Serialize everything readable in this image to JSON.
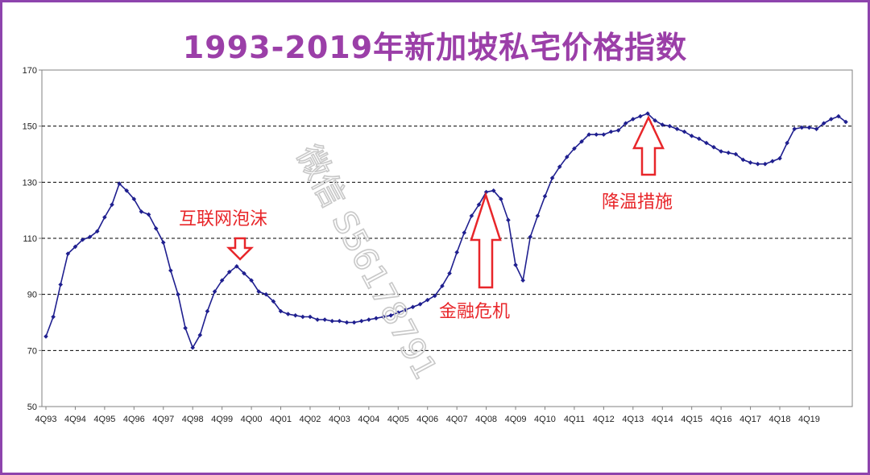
{
  "chart_data": {
    "type": "line",
    "title": "1993-2019年新加坡私宅价格指数",
    "ylim": [
      50,
      170
    ],
    "yticks": [
      50,
      70,
      90,
      110,
      130,
      150,
      170
    ],
    "xtick_labels": [
      "4Q93",
      "4Q94",
      "4Q95",
      "4Q96",
      "4Q97",
      "4Q98",
      "4Q99",
      "4Q00",
      "4Q01",
      "4Q02",
      "4Q03",
      "4Q04",
      "4Q05",
      "4Q06",
      "4Q07",
      "4Q08",
      "4Q09",
      "4Q10",
      "4Q11",
      "4Q12",
      "4Q13",
      "4Q14",
      "4Q15",
      "4Q16",
      "4Q17",
      "4Q18",
      "4Q19"
    ],
    "grid": "horizontal-dashed",
    "series": [
      {
        "color": "#1f1f8f",
        "values": [
          75,
          82,
          93.5,
          104.5,
          107,
          109.5,
          110.5,
          112.5,
          117.5,
          122,
          129.5,
          127,
          124,
          119.5,
          118.5,
          113.5,
          108.5,
          98.5,
          90,
          78,
          71,
          75.5,
          84,
          91,
          95,
          98,
          100,
          97.5,
          95,
          91,
          90,
          87.5,
          84,
          83,
          82.5,
          82,
          82,
          81,
          81,
          80.5,
          80.5,
          80,
          80,
          80.5,
          81,
          81.5,
          82,
          82.5,
          83.5,
          84.5,
          85.5,
          86.5,
          88,
          89.5,
          93,
          97.5,
          105,
          112,
          118,
          122,
          126.5,
          127,
          124,
          116.5,
          100.5,
          95,
          110.5,
          118,
          125,
          131.5,
          135.5,
          139,
          142,
          144.5,
          147,
          147,
          147,
          148,
          148.5,
          151,
          152.5,
          153.5,
          154.5,
          152,
          150.5,
          150,
          149,
          148,
          146.5,
          145.5,
          144,
          142.5,
          141,
          140.5,
          140,
          138,
          137,
          136.5,
          136.5,
          137.5,
          138.5,
          144,
          149,
          149.5,
          149.5,
          149,
          151,
          152.5,
          153.5,
          151.5
        ]
      }
    ],
    "annotations": [
      {
        "text": "互联网泡沫",
        "arrow": "down"
      },
      {
        "text": "金融危机",
        "arrow": "up"
      },
      {
        "text": "降温措施",
        "arrow": "up"
      }
    ],
    "watermark": "微信 S56178791"
  }
}
